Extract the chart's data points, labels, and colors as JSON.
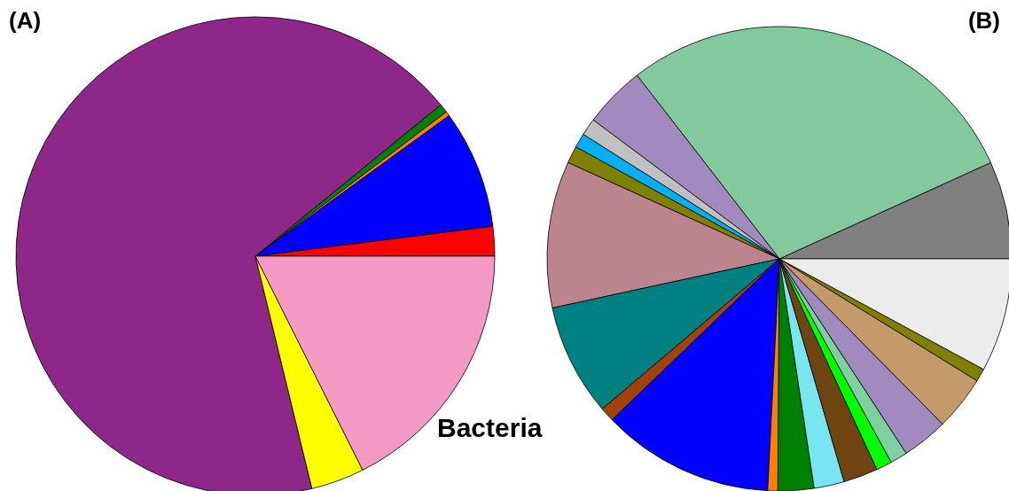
{
  "chart_data": [
    {
      "type": "pie",
      "title": "(A)",
      "annotations": [
        "Bacteria"
      ],
      "categories": [
        null,
        null,
        null,
        null,
        null,
        null,
        null
      ],
      "values": [
        2,
        8,
        0.3,
        0.6,
        67.9,
        3.6,
        17.6
      ],
      "colors": [
        "#ff0000",
        "#0000ff",
        "#ff8000",
        "#008000",
        "#8e278a",
        "#ffff00",
        "#f29ac4"
      ]
    },
    {
      "type": "pie",
      "title": "(B)",
      "categories": [
        null,
        null,
        null,
        null,
        null,
        null,
        null,
        null,
        null,
        null,
        null,
        null,
        null,
        null,
        null,
        null,
        null,
        null,
        null,
        null
      ],
      "values": [
        6.8,
        28.7,
        4.3,
        1.2,
        1.0,
        1.2,
        10.2,
        7.8,
        1.0,
        12.0,
        0.7,
        2.5,
        2.1,
        2.4,
        1.1,
        1.2,
        3.2,
        3.8,
        0.9,
        7.9
      ],
      "colors": [
        "#808080",
        "#82c99e",
        "#a18abd",
        "#c0c0c0",
        "#00b0f0",
        "#808000",
        "#bc848c",
        "#008080",
        "#a0420a",
        "#0000ff",
        "#ff8000",
        "#008000",
        "#78e6f0",
        "#6e4410",
        "#00ff00",
        "#7fd0a0",
        "#a18abd",
        "#c39b6a",
        "#808000",
        "#ececec"
      ]
    }
  ]
}
